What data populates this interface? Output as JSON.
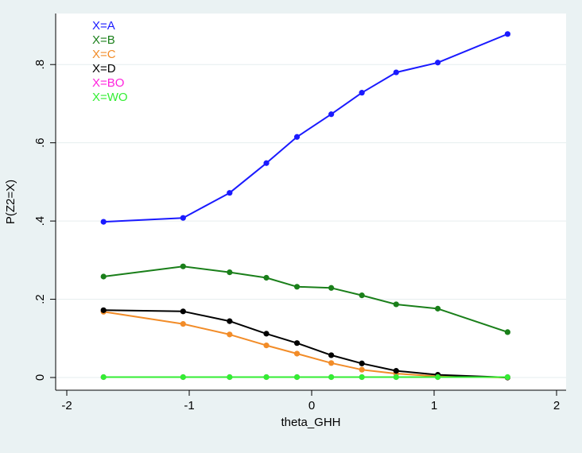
{
  "chart_data": {
    "type": "line",
    "title": "",
    "xlabel": "theta_GHH",
    "ylabel": "P(Z2=X)",
    "xlim": [
      -2,
      2
    ],
    "ylim": [
      0,
      0.9
    ],
    "x_ticks": [
      -2,
      -1,
      0,
      1,
      2
    ],
    "x_tick_labels": [
      "-2",
      "-1",
      "0",
      "1",
      "2"
    ],
    "y_ticks": [
      0,
      0.2,
      0.4,
      0.6,
      0.8
    ],
    "y_tick_labels": [
      "0",
      ".2",
      ".4",
      ".6",
      ".8"
    ],
    "grid": "horizontal",
    "legend_position": "top-left",
    "x": [
      -1.7,
      -1.05,
      -0.67,
      -0.37,
      -0.12,
      0.16,
      0.41,
      0.69,
      1.03,
      1.6
    ],
    "series": [
      {
        "name": "X=A",
        "color": "#1a1aff",
        "values": [
          0.398,
          0.408,
          0.472,
          0.548,
          0.615,
          0.673,
          0.728,
          0.78,
          0.805,
          0.878
        ]
      },
      {
        "name": "X=B",
        "color": "#1a7f1a",
        "values": [
          0.258,
          0.284,
          0.269,
          0.255,
          0.232,
          0.229,
          0.21,
          0.187,
          0.176,
          0.116
        ]
      },
      {
        "name": "X=C",
        "color": "#f28c28",
        "values": [
          0.168,
          0.137,
          0.11,
          0.082,
          0.061,
          0.037,
          0.02,
          0.01,
          0.003,
          0.0
        ]
      },
      {
        "name": "X=D",
        "color": "#000000",
        "values": [
          0.172,
          0.169,
          0.144,
          0.112,
          0.088,
          0.057,
          0.036,
          0.017,
          0.007,
          0.0
        ]
      },
      {
        "name": "X=BO",
        "color": "#ff22dd",
        "values": [
          0.001,
          0.001,
          0.001,
          0.001,
          0.001,
          0.001,
          0.001,
          0.001,
          0.001,
          0.001
        ]
      },
      {
        "name": "X=WO",
        "color": "#33ee33",
        "values": [
          0.001,
          0.001,
          0.001,
          0.001,
          0.001,
          0.001,
          0.001,
          0.001,
          0.001,
          0.001
        ]
      }
    ]
  }
}
